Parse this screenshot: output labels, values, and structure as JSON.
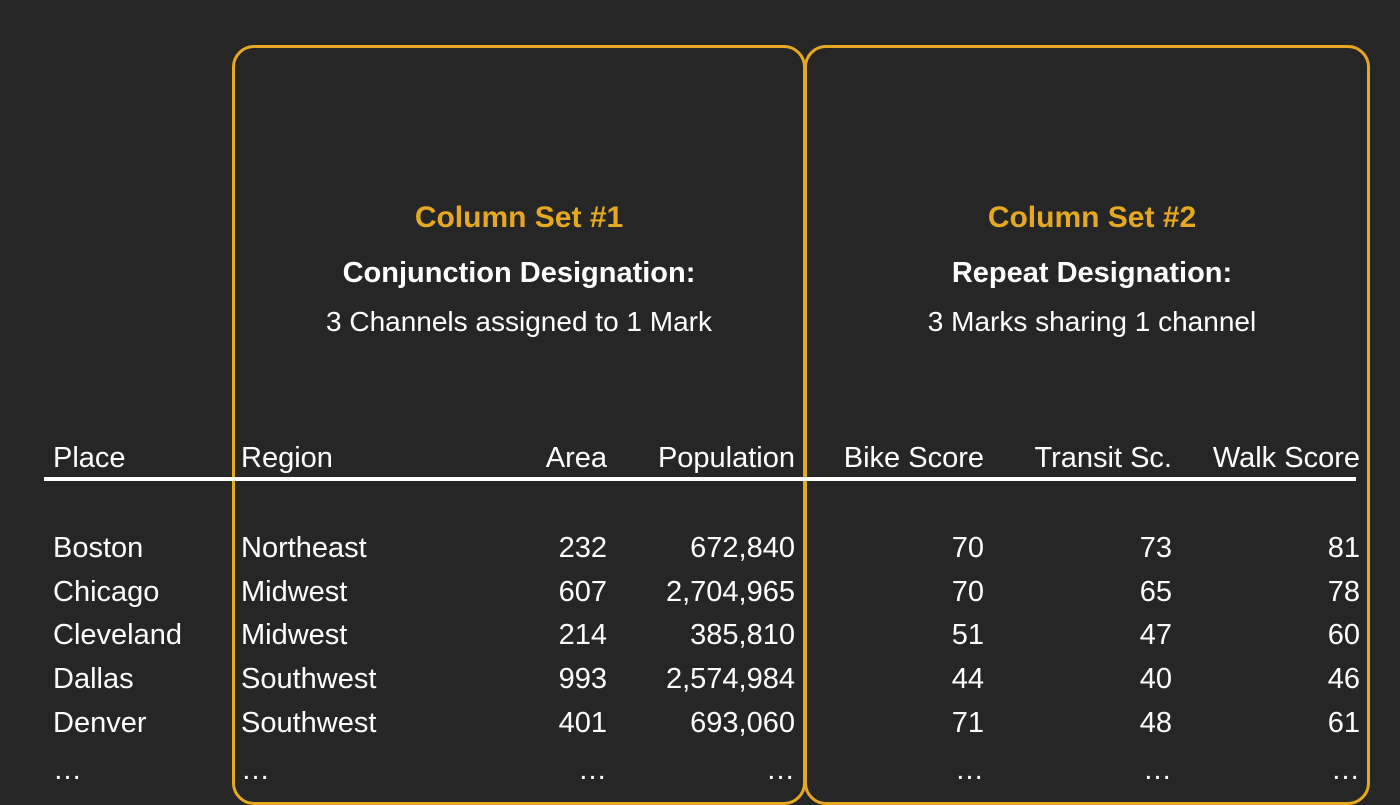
{
  "column_sets": [
    {
      "title": "Column Set #1",
      "subtitle": "Conjunction Designation:",
      "description": "3 Channels assigned to 1 Mark"
    },
    {
      "title": "Column Set #2",
      "subtitle": "Repeat Designation:",
      "description": "3 Marks sharing 1 channel"
    }
  ],
  "table": {
    "headers": [
      "Place",
      "Region",
      "Area",
      "Population",
      "Bike Score",
      "Transit Sc.",
      "Walk Score"
    ],
    "rows": [
      [
        "Boston",
        "Northeast",
        "232",
        "672,840",
        "70",
        "73",
        "81"
      ],
      [
        "Chicago",
        "Midwest",
        "607",
        "2,704,965",
        "70",
        "65",
        "78"
      ],
      [
        "Cleveland",
        "Midwest",
        "214",
        "385,810",
        "51",
        "47",
        "60"
      ],
      [
        "Dallas",
        "Southwest",
        "993",
        "2,574,984",
        "44",
        "40",
        "46"
      ],
      [
        "Denver",
        "Southwest",
        "401",
        "693,060",
        "71",
        "48",
        "61"
      ],
      [
        "…",
        "…",
        "…",
        "…",
        "…",
        "…",
        "…"
      ]
    ]
  },
  "colors": {
    "background": "#262626",
    "accent": "#e5a823",
    "text": "#ffffff"
  }
}
